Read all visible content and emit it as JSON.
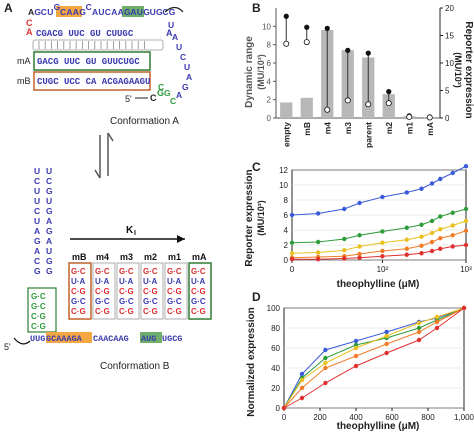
{
  "panels": {
    "A": {
      "letter": "A",
      "top_seq": [
        "A",
        "G",
        "C",
        "U",
        "G",
        "C",
        "A",
        "A",
        "G",
        "C",
        "A",
        "U",
        "C",
        "A",
        "A",
        "G",
        "A",
        "U",
        "G",
        "U",
        "G",
        "C",
        "G"
      ],
      "top_hilite_aag": "AAG",
      "top_hilite_aug": "AUG",
      "left_red": [
        "C",
        "A"
      ],
      "row1": "CGACG  UUC  GU  CUUGC",
      "row1_end": "A",
      "mA_label": "mA",
      "mA_seq": "GACG  UUC  GU  GUUCUGC",
      "mB_label": "mB",
      "mB_seq": "CUGC  UCC  CA  ACGAGAAGU",
      "loop_letters": [
        "U",
        "A",
        "U",
        "C",
        "U",
        "A",
        "G",
        "A",
        "C",
        "G",
        "C"
      ],
      "five_prime": "5'",
      "tail": "C",
      "tail2": "G",
      "caption": "Conformation A"
    },
    "arrow": {
      "label": "K",
      "sub": "I"
    },
    "Bconf": {
      "stem_top": [
        "U",
        "C",
        "U",
        "U",
        "C",
        "U",
        "A",
        "G",
        "A",
        "C",
        "G",
        "U",
        "C",
        "G",
        "U",
        "G",
        "A",
        "G",
        "A",
        "U",
        "G",
        "G"
      ],
      "labels": [
        "mB",
        "m4",
        "m3",
        "m2",
        "m1",
        "mA"
      ],
      "col_mB": [
        "G·C",
        "U·A",
        "C·G",
        "G·C",
        "C·G"
      ],
      "col_m4": [
        "G·C",
        "U·A",
        "C·G",
        "G·C",
        "C·G"
      ],
      "col_m3": [
        "G·C",
        "U·A",
        "C·G",
        "G·C",
        "C·G"
      ],
      "col_m2": [
        "G·C",
        "U·A",
        "C·G",
        "G·C",
        "C·G"
      ],
      "col_m1": [
        "G·C",
        "U·A",
        "C·G",
        "G·C",
        "C·G"
      ],
      "col_mA": [
        "G·C",
        "U·A",
        "C·G",
        "G·C",
        "C·G"
      ],
      "bottom_seq_pre": "UUG",
      "bottom_hilite_1": "GCAAAGA",
      "bottom_mid": "CAACAAG",
      "bottom_hilite_2": "AUG",
      "bottom_end": "UGCG",
      "five_prime": "5'",
      "caption": "Conformation B"
    },
    "B": {
      "letter": "B",
      "left_axis_title": "Dynamic range",
      "left_axis_sub": "(MU/10³)",
      "right_axis_title": "Reporter expression",
      "right_axis_sub": "(MU/10³)"
    },
    "C": {
      "letter": "C",
      "ylabel": "Reporter expression",
      "ylabel_sub": "(MU/10³)",
      "xlabel": "theophylline (μM)"
    },
    "D": {
      "letter": "D",
      "ylabel": "Normalized expression",
      "xlabel": "theophylline (μM)"
    }
  },
  "chart_data": [
    {
      "id": "B",
      "type": "bar",
      "categories": [
        "empty",
        "mB",
        "m4",
        "m3",
        "parent",
        "m2",
        "m1",
        "mA"
      ],
      "values": [
        1.7,
        2.2,
        9.6,
        7.4,
        6.6,
        2.6,
        0.2,
        0.1
      ],
      "ylim": [
        0,
        12
      ],
      "yticks": [
        0,
        2,
        4,
        6,
        8,
        10
      ],
      "y2lim": [
        0,
        20
      ],
      "y2ticks": [
        0,
        5,
        10,
        15,
        20
      ],
      "dumbbells": [
        {
          "category": "empty",
          "high": 18.5,
          "low": 13.5
        },
        {
          "category": "mB",
          "high": 16.5,
          "low": 13.8
        },
        {
          "category": "m4",
          "high": 16.3,
          "low": 1.5
        },
        {
          "category": "m3",
          "high": 12.3,
          "low": 3.2
        },
        {
          "category": "parent",
          "high": 11.8,
          "low": 2.5
        },
        {
          "category": "m2",
          "high": 4.8,
          "low": 2.7
        },
        {
          "category": "m1",
          "high": 0.4,
          "low": 0.2
        },
        {
          "category": "mA",
          "high": 0.2,
          "low": 0.1
        }
      ],
      "bar_color": "#b8b8b8"
    },
    {
      "id": "C",
      "type": "line",
      "xscale": "log",
      "xlim": [
        0,
        1000
      ],
      "xticks": [
        "0",
        "10²",
        "10³"
      ],
      "ylim": [
        0,
        12
      ],
      "yticks": [
        0,
        2,
        4,
        6,
        8,
        10,
        12
      ],
      "x": [
        0,
        10,
        30,
        50,
        100,
        200,
        300,
        400,
        500,
        700,
        1000
      ],
      "series": [
        {
          "color": "#3a5bd9",
          "values": [
            6.0,
            6.2,
            6.8,
            7.6,
            8.4,
            9.0,
            9.5,
            10.2,
            10.8,
            11.6,
            12.5
          ]
        },
        {
          "color": "#2e9b3a",
          "values": [
            2.3,
            2.4,
            2.8,
            3.3,
            3.8,
            4.3,
            4.7,
            5.2,
            5.8,
            6.3,
            6.8
          ]
        },
        {
          "color": "#e8c020",
          "values": [
            0.9,
            1.0,
            1.3,
            1.8,
            2.3,
            2.7,
            3.1,
            3.6,
            4.1,
            4.6,
            5.2
          ]
        },
        {
          "color": "#f07c2a",
          "values": [
            0.3,
            0.4,
            0.5,
            0.8,
            1.2,
            1.5,
            1.9,
            2.4,
            2.9,
            3.3,
            3.9
          ]
        },
        {
          "color": "#e03030",
          "values": [
            0.1,
            0.1,
            0.2,
            0.3,
            0.5,
            0.7,
            0.9,
            1.2,
            1.5,
            1.8,
            2.0
          ]
        }
      ]
    },
    {
      "id": "D",
      "type": "line",
      "xlim": [
        0,
        1000
      ],
      "xticks": [
        0,
        200,
        400,
        600,
        800,
        "1,000"
      ],
      "ylim": [
        0,
        100
      ],
      "yticks": [
        0,
        20,
        40,
        60,
        80,
        100
      ],
      "x": [
        0,
        100,
        230,
        400,
        570,
        750,
        850,
        1000
      ],
      "series": [
        {
          "color": "#3a5bd9",
          "values": [
            0,
            34,
            58,
            67,
            76,
            86,
            90,
            100
          ]
        },
        {
          "color": "#2e9b3a",
          "values": [
            0,
            30,
            50,
            63,
            70,
            80,
            88,
            100
          ]
        },
        {
          "color": "#e8c020",
          "values": [
            0,
            28,
            45,
            60,
            72,
            85,
            91,
            100
          ]
        },
        {
          "color": "#f07c2a",
          "values": [
            0,
            20,
            40,
            52,
            64,
            76,
            86,
            100
          ]
        },
        {
          "color": "#e03030",
          "values": [
            0,
            10,
            25,
            42,
            55,
            68,
            80,
            100
          ]
        }
      ]
    }
  ]
}
